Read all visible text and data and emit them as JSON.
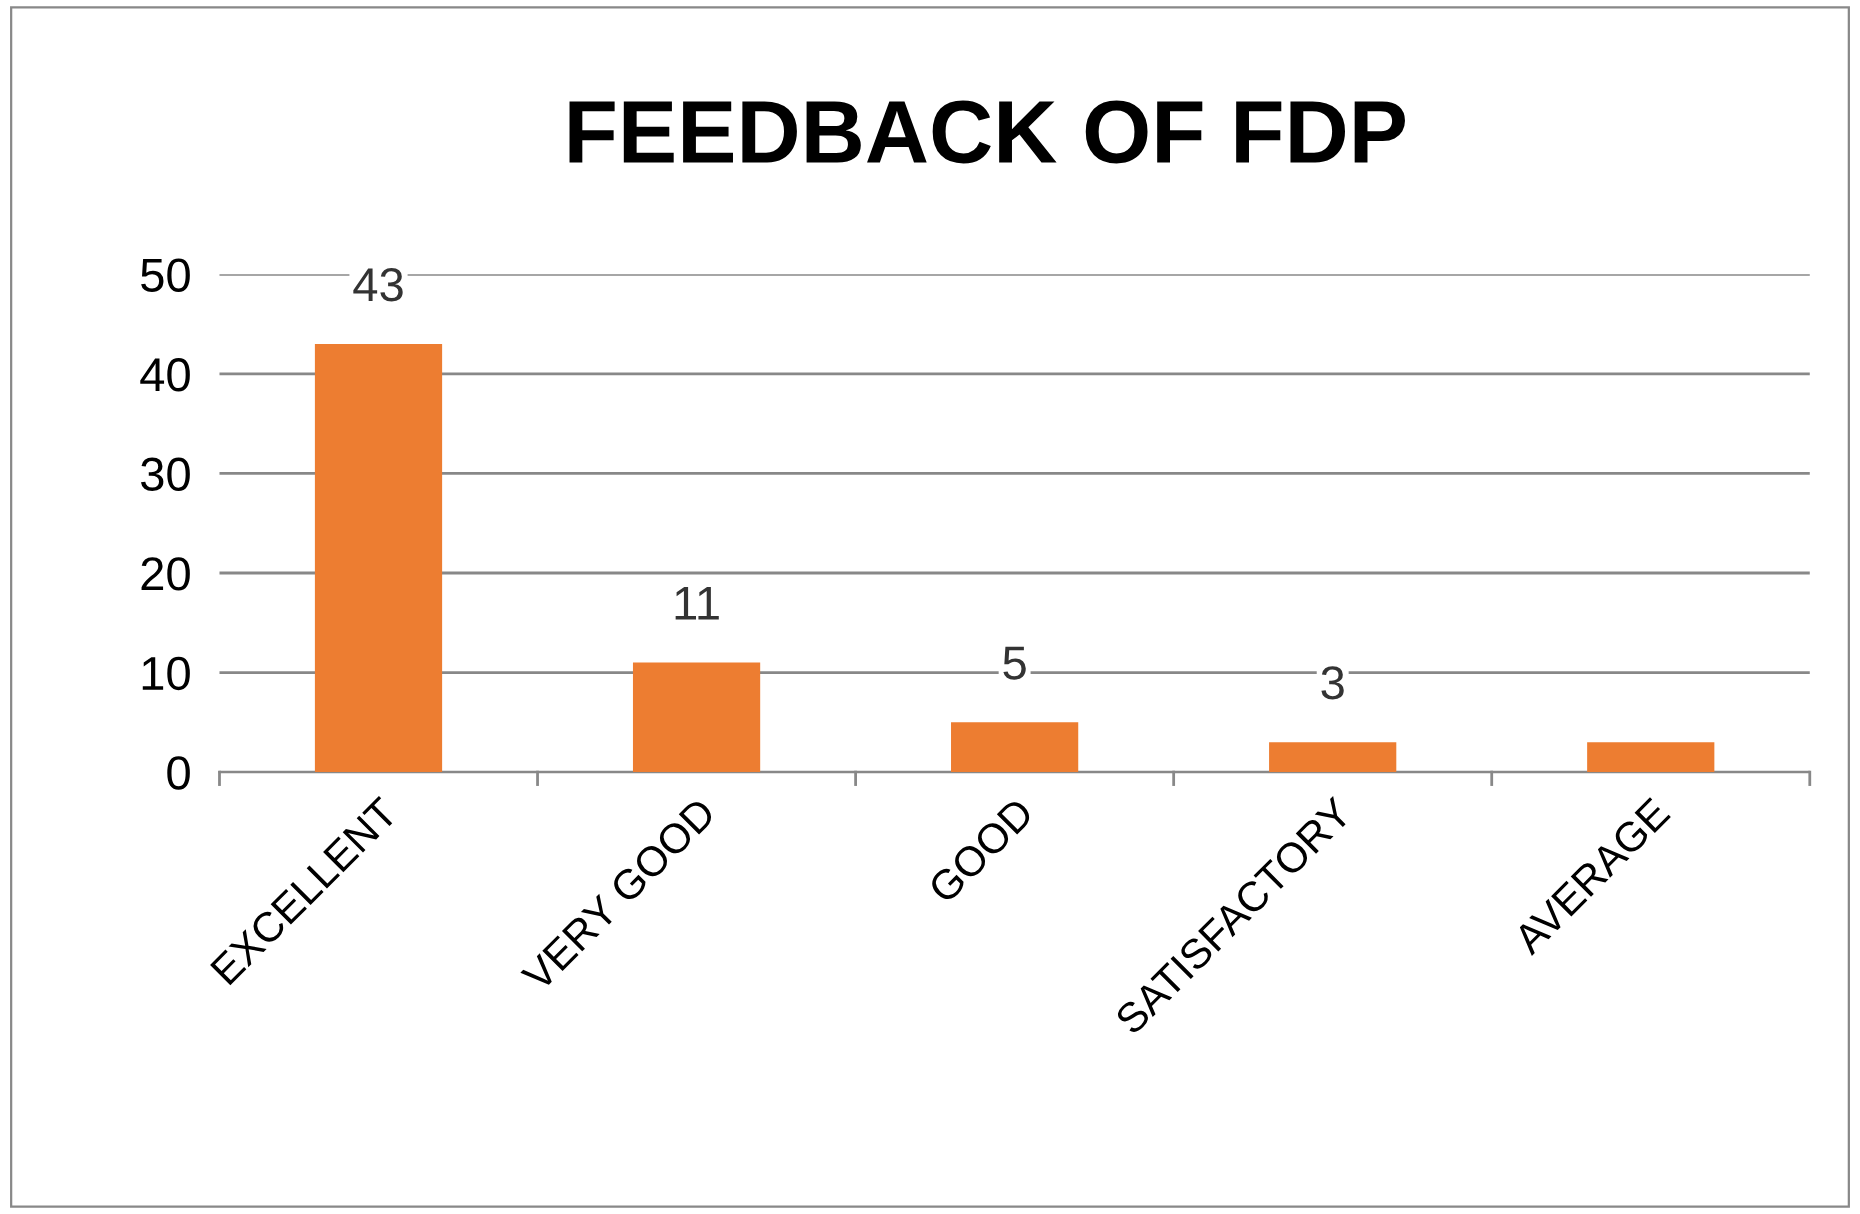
{
  "chart_data": {
    "type": "bar",
    "title": "FEEDBACK OF FDP",
    "categories": [
      "EXCELLENT",
      "VERY GOOD",
      "GOOD",
      "SATISFACTORY",
      "AVERAGE"
    ],
    "values": [
      43,
      11,
      5,
      3,
      3
    ],
    "value_labels": [
      "43",
      "11",
      "5",
      "3",
      null
    ],
    "color": "#ed7d31",
    "ylim": [
      0,
      50
    ],
    "yticks": [
      0,
      10,
      20,
      30,
      40,
      50
    ],
    "grid": "y",
    "legend": false
  }
}
